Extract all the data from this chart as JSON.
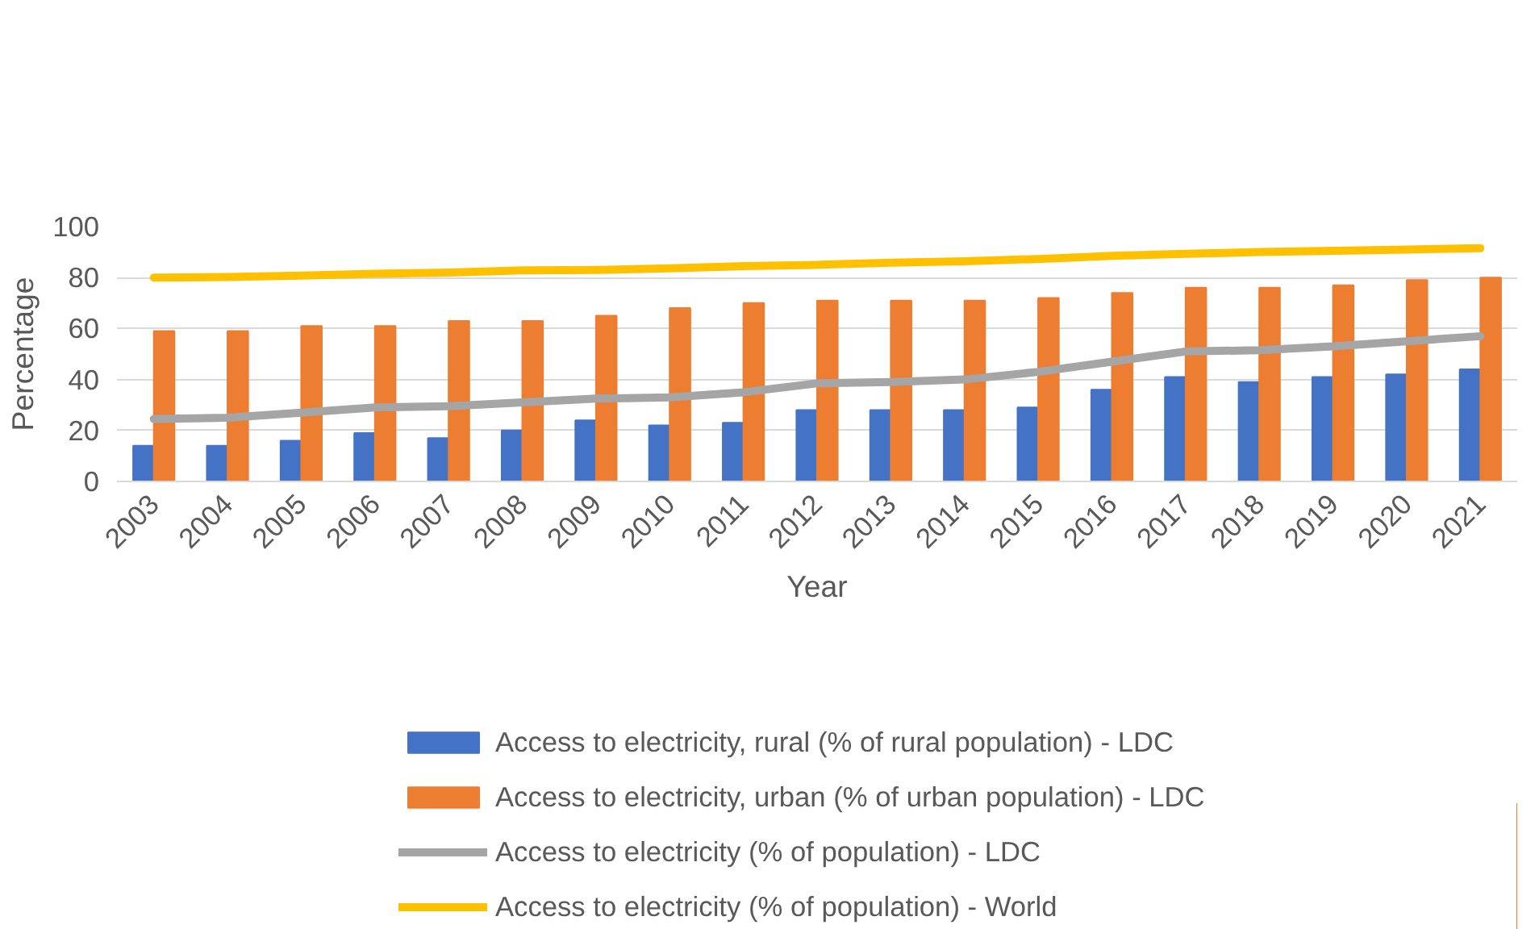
{
  "chart_data": {
    "type": "bar",
    "xlabel": "Year",
    "ylabel": "Percentage",
    "categories": [
      "2003",
      "2004",
      "2005",
      "2006",
      "2007",
      "2008",
      "2009",
      "2010",
      "2011",
      "2012",
      "2013",
      "2014",
      "2015",
      "2016",
      "2017",
      "2018",
      "2019",
      "2020",
      "2021"
    ],
    "series": [
      {
        "name": "Access to electricity, rural (% of rural population) - LDC",
        "color": "#4472c4",
        "values": [
          14,
          14,
          16,
          19,
          17,
          20,
          24,
          22,
          23,
          28,
          28,
          28,
          29,
          36,
          41,
          39,
          41,
          42,
          44
        ]
      },
      {
        "name": "Access to electricity, urban (% of urban population) - LDC",
        "color": "#ed7d31",
        "values": [
          59,
          59,
          61,
          61,
          63,
          63,
          65,
          68,
          70,
          71,
          71,
          71,
          72,
          74,
          76,
          76,
          77,
          79,
          80
        ]
      },
      {
        "name": "Access to electricity (% of population) - LDC",
        "type": "line",
        "color": "#a5a5a5",
        "values": [
          24.5,
          25,
          27,
          29,
          29.5,
          31,
          32.5,
          33,
          35,
          38.5,
          39,
          40,
          43,
          47,
          51,
          51.5,
          53,
          55,
          57
        ]
      },
      {
        "name": "Access to electricity (% of population) - World",
        "type": "line",
        "color": "#ffc000",
        "values": [
          80,
          80.2,
          80.8,
          81.5,
          82,
          82.8,
          83,
          83.6,
          84.5,
          85,
          85.8,
          86.4,
          87.3,
          88.5,
          89.3,
          90,
          90.5,
          91,
          91.5
        ]
      }
    ],
    "ylim": [
      0,
      100
    ],
    "yticks": [
      0,
      20,
      40,
      60,
      80,
      100
    ],
    "grid": "y",
    "legend": "bottom",
    "line_style": "solid"
  }
}
